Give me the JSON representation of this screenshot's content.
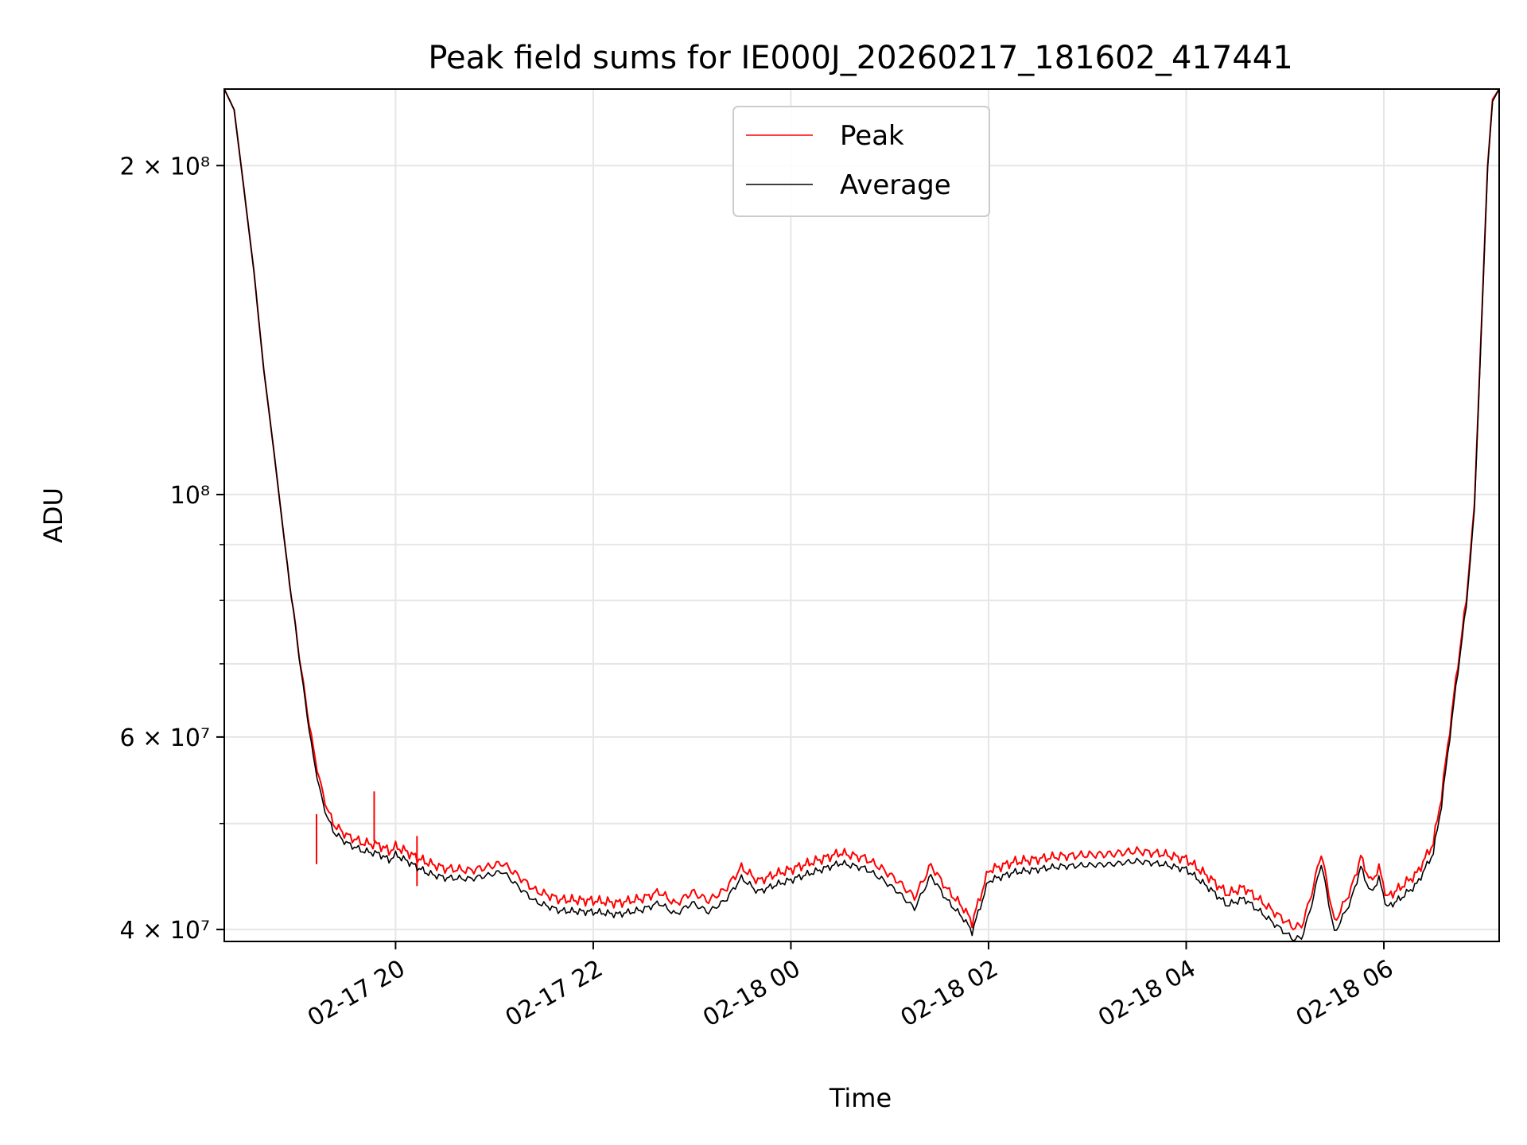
{
  "chart_data": {
    "type": "line",
    "title": "Peak field sums for IE000J_20260217_181602_417441",
    "xlabel": "Time",
    "ylabel": "ADU",
    "x_range": [
      "2026-02-17T18:16:00",
      "2026-02-18T07:10:00"
    ],
    "ylim": [
      39000000,
      235000000
    ],
    "yscale": "log",
    "grid": true,
    "legend_position": "top-center",
    "x_ticks": [
      {
        "t": "2026-02-17T20:00:00",
        "label": "02-17 20"
      },
      {
        "t": "2026-02-17T22:00:00",
        "label": "02-17 22"
      },
      {
        "t": "2026-02-18T00:00:00",
        "label": "02-18 00"
      },
      {
        "t": "2026-02-18T02:00:00",
        "label": "02-18 02"
      },
      {
        "t": "2026-02-18T04:00:00",
        "label": "02-18 04"
      },
      {
        "t": "2026-02-18T06:00:00",
        "label": "02-18 06"
      }
    ],
    "y_ticks": [
      {
        "v": 40000000,
        "label": "4 × 10⁷"
      },
      {
        "v": 60000000,
        "label": "6 × 10⁷"
      },
      {
        "v": 100000000,
        "label": "10⁸"
      },
      {
        "v": 200000000,
        "label": "2 × 10⁸"
      }
    ],
    "y_minor_ticks": [
      50000000,
      70000000,
      80000000,
      90000000
    ],
    "colors": {
      "peak": "#ff0000",
      "average": "#000000",
      "grid": "#e6e6e6"
    },
    "series": [
      {
        "name": "Peak",
        "color": "#ff0000",
        "points": [
          [
            "2026-02-17T18:16:00",
            235000000
          ],
          [
            "2026-02-17T18:22:00",
            225000000
          ],
          [
            "2026-02-17T18:28:00",
            190000000
          ],
          [
            "2026-02-17T18:34:00",
            160000000
          ],
          [
            "2026-02-17T18:40:00",
            130000000
          ],
          [
            "2026-02-17T18:46:00",
            110000000
          ],
          [
            "2026-02-17T18:52:00",
            92000000
          ],
          [
            "2026-02-17T18:58:00",
            78000000
          ],
          [
            "2026-02-17T19:04:00",
            67000000
          ],
          [
            "2026-02-17T19:10:00",
            58500000
          ],
          [
            "2026-02-17T19:16:00",
            53000000
          ],
          [
            "2026-02-17T19:22:00",
            50000000
          ],
          [
            "2026-02-17T19:30:00",
            48800000
          ],
          [
            "2026-02-17T19:40:00",
            48000000
          ],
          [
            "2026-02-17T19:50:00",
            47800000
          ],
          [
            "2026-02-17T19:56:00",
            47200000
          ],
          [
            "2026-02-17T20:00:00",
            47600000
          ],
          [
            "2026-02-17T20:06:00",
            47200000
          ],
          [
            "2026-02-17T20:12:00",
            46600000
          ],
          [
            "2026-02-17T20:20:00",
            46000000
          ],
          [
            "2026-02-17T20:30:00",
            45500000
          ],
          [
            "2026-02-17T20:45:00",
            45300000
          ],
          [
            "2026-02-17T20:55:00",
            45600000
          ],
          [
            "2026-02-17T21:05:00",
            46000000
          ],
          [
            "2026-02-17T21:15:00",
            44700000
          ],
          [
            "2026-02-17T21:25:00",
            43400000
          ],
          [
            "2026-02-17T21:40:00",
            42600000
          ],
          [
            "2026-02-17T22:00:00",
            42500000
          ],
          [
            "2026-02-17T22:15:00",
            42300000
          ],
          [
            "2026-02-17T22:30:00",
            42700000
          ],
          [
            "2026-02-17T22:40:00",
            43300000
          ],
          [
            "2026-02-17T22:50:00",
            42200000
          ],
          [
            "2026-02-17T23:00:00",
            43300000
          ],
          [
            "2026-02-17T23:10:00",
            42500000
          ],
          [
            "2026-02-17T23:20:00",
            43500000
          ],
          [
            "2026-02-17T23:30:00",
            45600000
          ],
          [
            "2026-02-17T23:40:00",
            44300000
          ],
          [
            "2026-02-17T23:50:00",
            44900000
          ],
          [
            "2026-02-18T00:00:00",
            45400000
          ],
          [
            "2026-02-18T00:15:00",
            46200000
          ],
          [
            "2026-02-18T00:30:00",
            47000000
          ],
          [
            "2026-02-18T00:45:00",
            46500000
          ],
          [
            "2026-02-18T00:55:00",
            45500000
          ],
          [
            "2026-02-18T01:05:00",
            44300000
          ],
          [
            "2026-02-18T01:15:00",
            42800000
          ],
          [
            "2026-02-18T01:25:00",
            45800000
          ],
          [
            "2026-02-18T01:35:00",
            43500000
          ],
          [
            "2026-02-18T01:45:00",
            41800000
          ],
          [
            "2026-02-18T01:50:00",
            40600000
          ],
          [
            "2026-02-18T02:00:00",
            45300000
          ],
          [
            "2026-02-18T02:15:00",
            46100000
          ],
          [
            "2026-02-18T02:30:00",
            46400000
          ],
          [
            "2026-02-18T02:45:00",
            46700000
          ],
          [
            "2026-02-18T03:00:00",
            46800000
          ],
          [
            "2026-02-18T03:15:00",
            46900000
          ],
          [
            "2026-02-18T03:30:00",
            47200000
          ],
          [
            "2026-02-18T03:45:00",
            46900000
          ],
          [
            "2026-02-18T04:00:00",
            46400000
          ],
          [
            "2026-02-18T04:15:00",
            44500000
          ],
          [
            "2026-02-18T04:25:00",
            43100000
          ],
          [
            "2026-02-18T04:35:00",
            43700000
          ],
          [
            "2026-02-18T04:45:00",
            42500000
          ],
          [
            "2026-02-18T04:55:00",
            41300000
          ],
          [
            "2026-02-18T05:05:00",
            40200000
          ],
          [
            "2026-02-18T05:10:00",
            40300000
          ],
          [
            "2026-02-18T05:15:00",
            42500000
          ],
          [
            "2026-02-18T05:22:00",
            47000000
          ],
          [
            "2026-02-18T05:30:00",
            40600000
          ],
          [
            "2026-02-18T05:40:00",
            43500000
          ],
          [
            "2026-02-18T05:46:00",
            46600000
          ],
          [
            "2026-02-18T05:52:00",
            44200000
          ],
          [
            "2026-02-18T05:57:00",
            45500000
          ],
          [
            "2026-02-18T06:02:00",
            42800000
          ],
          [
            "2026-02-18T06:10:00",
            43700000
          ],
          [
            "2026-02-18T06:20:00",
            45000000
          ],
          [
            "2026-02-18T06:30:00",
            48000000
          ],
          [
            "2026-02-18T06:35:00",
            53000000
          ],
          [
            "2026-02-18T06:40:00",
            61000000
          ],
          [
            "2026-02-18T06:45:00",
            70000000
          ],
          [
            "2026-02-18T06:50:00",
            80000000
          ],
          [
            "2026-02-18T06:55:00",
            98000000
          ],
          [
            "2026-02-18T06:59:00",
            140000000
          ],
          [
            "2026-02-18T07:03:00",
            200000000
          ],
          [
            "2026-02-18T07:06:00",
            230000000
          ],
          [
            "2026-02-18T07:10:00",
            235000000
          ]
        ],
        "spikes": [
          {
            "t": "2026-02-17T19:12:00",
            "v": 51000000
          },
          {
            "t": "2026-02-17T19:47:00",
            "v": 53500000
          },
          {
            "t": "2026-02-17T20:13:00",
            "v": 48700000
          }
        ]
      },
      {
        "name": "Average",
        "color": "#000000",
        "points": [
          [
            "2026-02-17T18:16:00",
            235000000
          ],
          [
            "2026-02-17T18:22:00",
            225000000
          ],
          [
            "2026-02-17T18:28:00",
            190000000
          ],
          [
            "2026-02-17T18:34:00",
            160000000
          ],
          [
            "2026-02-17T18:40:00",
            130000000
          ],
          [
            "2026-02-17T18:46:00",
            110000000
          ],
          [
            "2026-02-17T18:52:00",
            92000000
          ],
          [
            "2026-02-17T18:58:00",
            78000000
          ],
          [
            "2026-02-17T19:04:00",
            66500000
          ],
          [
            "2026-02-17T19:10:00",
            57500000
          ],
          [
            "2026-02-17T19:16:00",
            52000000
          ],
          [
            "2026-02-17T19:22:00",
            49200000
          ],
          [
            "2026-02-17T19:30:00",
            48000000
          ],
          [
            "2026-02-17T19:40:00",
            47200000
          ],
          [
            "2026-02-17T19:50:00",
            46900000
          ],
          [
            "2026-02-17T19:56:00",
            46300000
          ],
          [
            "2026-02-17T20:00:00",
            46800000
          ],
          [
            "2026-02-17T20:06:00",
            46300000
          ],
          [
            "2026-02-17T20:12:00",
            45700000
          ],
          [
            "2026-02-17T20:20:00",
            45000000
          ],
          [
            "2026-02-17T20:30:00",
            44600000
          ],
          [
            "2026-02-17T20:45:00",
            44500000
          ],
          [
            "2026-02-17T20:55:00",
            44800000
          ],
          [
            "2026-02-17T21:05:00",
            45200000
          ],
          [
            "2026-02-17T21:15:00",
            43700000
          ],
          [
            "2026-02-17T21:25:00",
            42400000
          ],
          [
            "2026-02-17T21:40:00",
            41600000
          ],
          [
            "2026-02-17T22:00:00",
            41500000
          ],
          [
            "2026-02-17T22:15:00",
            41300000
          ],
          [
            "2026-02-17T22:30:00",
            41700000
          ],
          [
            "2026-02-17T22:40:00",
            42300000
          ],
          [
            "2026-02-17T22:50:00",
            41300000
          ],
          [
            "2026-02-17T23:00:00",
            42300000
          ],
          [
            "2026-02-17T23:10:00",
            41500000
          ],
          [
            "2026-02-17T23:20:00",
            42500000
          ],
          [
            "2026-02-17T23:30:00",
            44600000
          ],
          [
            "2026-02-17T23:40:00",
            43300000
          ],
          [
            "2026-02-17T23:50:00",
            43900000
          ],
          [
            "2026-02-18T00:00:00",
            44400000
          ],
          [
            "2026-02-18T00:15:00",
            45200000
          ],
          [
            "2026-02-18T00:30:00",
            46000000
          ],
          [
            "2026-02-18T00:45:00",
            45500000
          ],
          [
            "2026-02-18T00:55:00",
            44500000
          ],
          [
            "2026-02-18T01:05:00",
            43300000
          ],
          [
            "2026-02-18T01:15:00",
            41800000
          ],
          [
            "2026-02-18T01:25:00",
            44800000
          ],
          [
            "2026-02-18T01:35:00",
            42500000
          ],
          [
            "2026-02-18T01:45:00",
            40900000
          ],
          [
            "2026-02-18T01:50:00",
            39800000
          ],
          [
            "2026-02-18T02:00:00",
            44300000
          ],
          [
            "2026-02-18T02:15:00",
            45100000
          ],
          [
            "2026-02-18T02:30:00",
            45400000
          ],
          [
            "2026-02-18T02:45:00",
            45700000
          ],
          [
            "2026-02-18T03:00:00",
            45800000
          ],
          [
            "2026-02-18T03:15:00",
            45900000
          ],
          [
            "2026-02-18T03:30:00",
            46200000
          ],
          [
            "2026-02-18T03:45:00",
            45900000
          ],
          [
            "2026-02-18T04:00:00",
            45400000
          ],
          [
            "2026-02-18T04:15:00",
            43500000
          ],
          [
            "2026-02-18T04:25:00",
            42100000
          ],
          [
            "2026-02-18T04:35:00",
            42700000
          ],
          [
            "2026-02-18T04:45:00",
            41500000
          ],
          [
            "2026-02-18T04:55:00",
            40300000
          ],
          [
            "2026-02-18T05:05:00",
            39200000
          ],
          [
            "2026-02-18T05:10:00",
            39300000
          ],
          [
            "2026-02-18T05:15:00",
            41500000
          ],
          [
            "2026-02-18T05:22:00",
            46000000
          ],
          [
            "2026-02-18T05:30:00",
            39700000
          ],
          [
            "2026-02-18T05:40:00",
            42500000
          ],
          [
            "2026-02-18T05:46:00",
            45600000
          ],
          [
            "2026-02-18T05:52:00",
            43200000
          ],
          [
            "2026-02-18T05:57:00",
            44500000
          ],
          [
            "2026-02-18T06:02:00",
            41900000
          ],
          [
            "2026-02-18T06:10:00",
            42700000
          ],
          [
            "2026-02-18T06:20:00",
            44000000
          ],
          [
            "2026-02-18T06:30:00",
            47000000
          ],
          [
            "2026-02-18T06:35:00",
            52000000
          ],
          [
            "2026-02-18T06:40:00",
            60000000
          ],
          [
            "2026-02-18T06:45:00",
            69000000
          ],
          [
            "2026-02-18T06:50:00",
            79000000
          ],
          [
            "2026-02-18T06:55:00",
            97000000
          ],
          [
            "2026-02-18T06:59:00",
            139000000
          ],
          [
            "2026-02-18T07:03:00",
            199000000
          ],
          [
            "2026-02-18T07:06:00",
            229000000
          ],
          [
            "2026-02-18T07:10:00",
            235000000
          ]
        ]
      }
    ]
  }
}
